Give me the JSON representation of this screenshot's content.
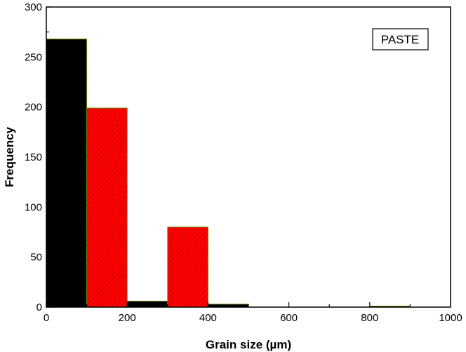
{
  "chart_data": {
    "type": "bar",
    "title": "",
    "xlabel": "Grain size (µm)",
    "ylabel": "Frequency",
    "xlim": [
      0,
      1000
    ],
    "ylim": [
      0,
      300
    ],
    "xticks": [
      0,
      200,
      400,
      600,
      800,
      1000
    ],
    "yticks": [
      0,
      50,
      100,
      150,
      200,
      250,
      300
    ],
    "bins": [
      {
        "from": 0,
        "to": 100,
        "value": 268,
        "color": "#000000"
      },
      {
        "from": 100,
        "to": 200,
        "value": 199,
        "color": "#ff0000"
      },
      {
        "from": 200,
        "to": 300,
        "value": 6,
        "color": "#000000"
      },
      {
        "from": 300,
        "to": 400,
        "value": 80,
        "color": "#ff0000"
      },
      {
        "from": 400,
        "to": 500,
        "value": 3,
        "color": "#000000"
      },
      {
        "from": 500,
        "to": 600,
        "value": 0,
        "color": "#ff0000"
      },
      {
        "from": 600,
        "to": 700,
        "value": 0,
        "color": "#000000"
      },
      {
        "from": 700,
        "to": 800,
        "value": 0,
        "color": "#ff0000"
      },
      {
        "from": 800,
        "to": 900,
        "value": 1,
        "color": "#000000"
      },
      {
        "from": 900,
        "to": 1000,
        "value": 0,
        "color": "#ff0000"
      }
    ],
    "legend": {
      "label": "PASTE",
      "position": "top-right"
    },
    "bar_edge_color": "#6b8e00",
    "grid": false
  }
}
